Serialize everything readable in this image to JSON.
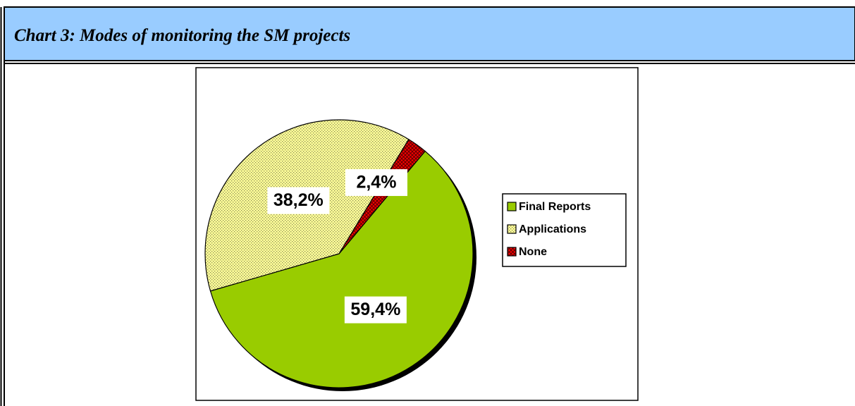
{
  "chart_data": {
    "type": "pie",
    "title": "Chart 3: Modes of monitoring the SM projects",
    "categories": [
      "Final Reports",
      "Applications",
      "None"
    ],
    "values": [
      59.4,
      38.2,
      2.4
    ],
    "value_labels": [
      "59,4%",
      "38,2%",
      "2,4%"
    ],
    "colors": [
      "#99cc00",
      "#ffff99",
      "#ff0000"
    ],
    "legend": "right"
  }
}
